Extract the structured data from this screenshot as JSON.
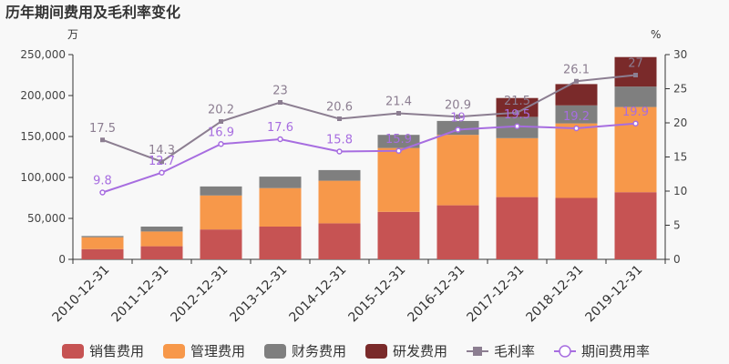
{
  "chart_data": {
    "type": "bar",
    "title": "历年期间费用及毛利率变化",
    "left_unit": "万",
    "right_unit": "%",
    "categories": [
      "2010-12-31",
      "2011-12-31",
      "2012-12-31",
      "2013-12-31",
      "2014-12-31",
      "2015-12-31",
      "2016-12-31",
      "2017-12-31",
      "2018-12-31",
      "2019-12-31"
    ],
    "ylim_left": [
      0,
      250000
    ],
    "yticks_left": [
      "0",
      "50,000",
      "100,000",
      "150,000",
      "200,000",
      "250,000"
    ],
    "ylim_right": [
      0,
      30
    ],
    "yticks_right": [
      "0",
      "5",
      "10",
      "15",
      "20",
      "25",
      "30"
    ],
    "stacked_series": [
      {
        "name": "销售费用",
        "color": "#c65353",
        "values": [
          12500,
          16000,
          36500,
          40000,
          44000,
          58000,
          66000,
          76000,
          75000,
          82000
        ]
      },
      {
        "name": "管理费用",
        "color": "#f7984a",
        "values": [
          14500,
          18000,
          41500,
          47000,
          52000,
          78000,
          86000,
          72000,
          91000,
          104000
        ]
      },
      {
        "name": "财务费用",
        "color": "#7f7f7f",
        "values": [
          1500,
          6000,
          11000,
          14000,
          13000,
          16000,
          17000,
          26000,
          22000,
          25000
        ]
      },
      {
        "name": "研发费用",
        "color": "#7a2a2a",
        "values": [
          0,
          0,
          0,
          0,
          0,
          0,
          0,
          23000,
          26000,
          36000
        ]
      }
    ],
    "line_series": [
      {
        "name": "毛利率",
        "color": "#8c7e91",
        "marker": "square",
        "values": [
          17.5,
          14.3,
          20.2,
          23,
          20.6,
          21.4,
          20.9,
          21.5,
          26.1,
          27
        ],
        "labels": [
          "17.5",
          "14.3",
          "20.2",
          "23",
          "20.6",
          "21.4",
          "20.9",
          "21.5",
          "26.1",
          "27"
        ]
      },
      {
        "name": "期间费用率",
        "color": "#a76de0",
        "marker": "circle",
        "values": [
          9.8,
          12.7,
          16.9,
          17.6,
          15.8,
          15.9,
          19,
          19.5,
          19.2,
          19.9
        ],
        "labels": [
          "9.8",
          "12.7",
          "16.9",
          "17.6",
          "15.8",
          "15.9",
          "19",
          "19.5",
          "19.2",
          "19.9"
        ]
      }
    ],
    "legend_position": "bottom"
  }
}
